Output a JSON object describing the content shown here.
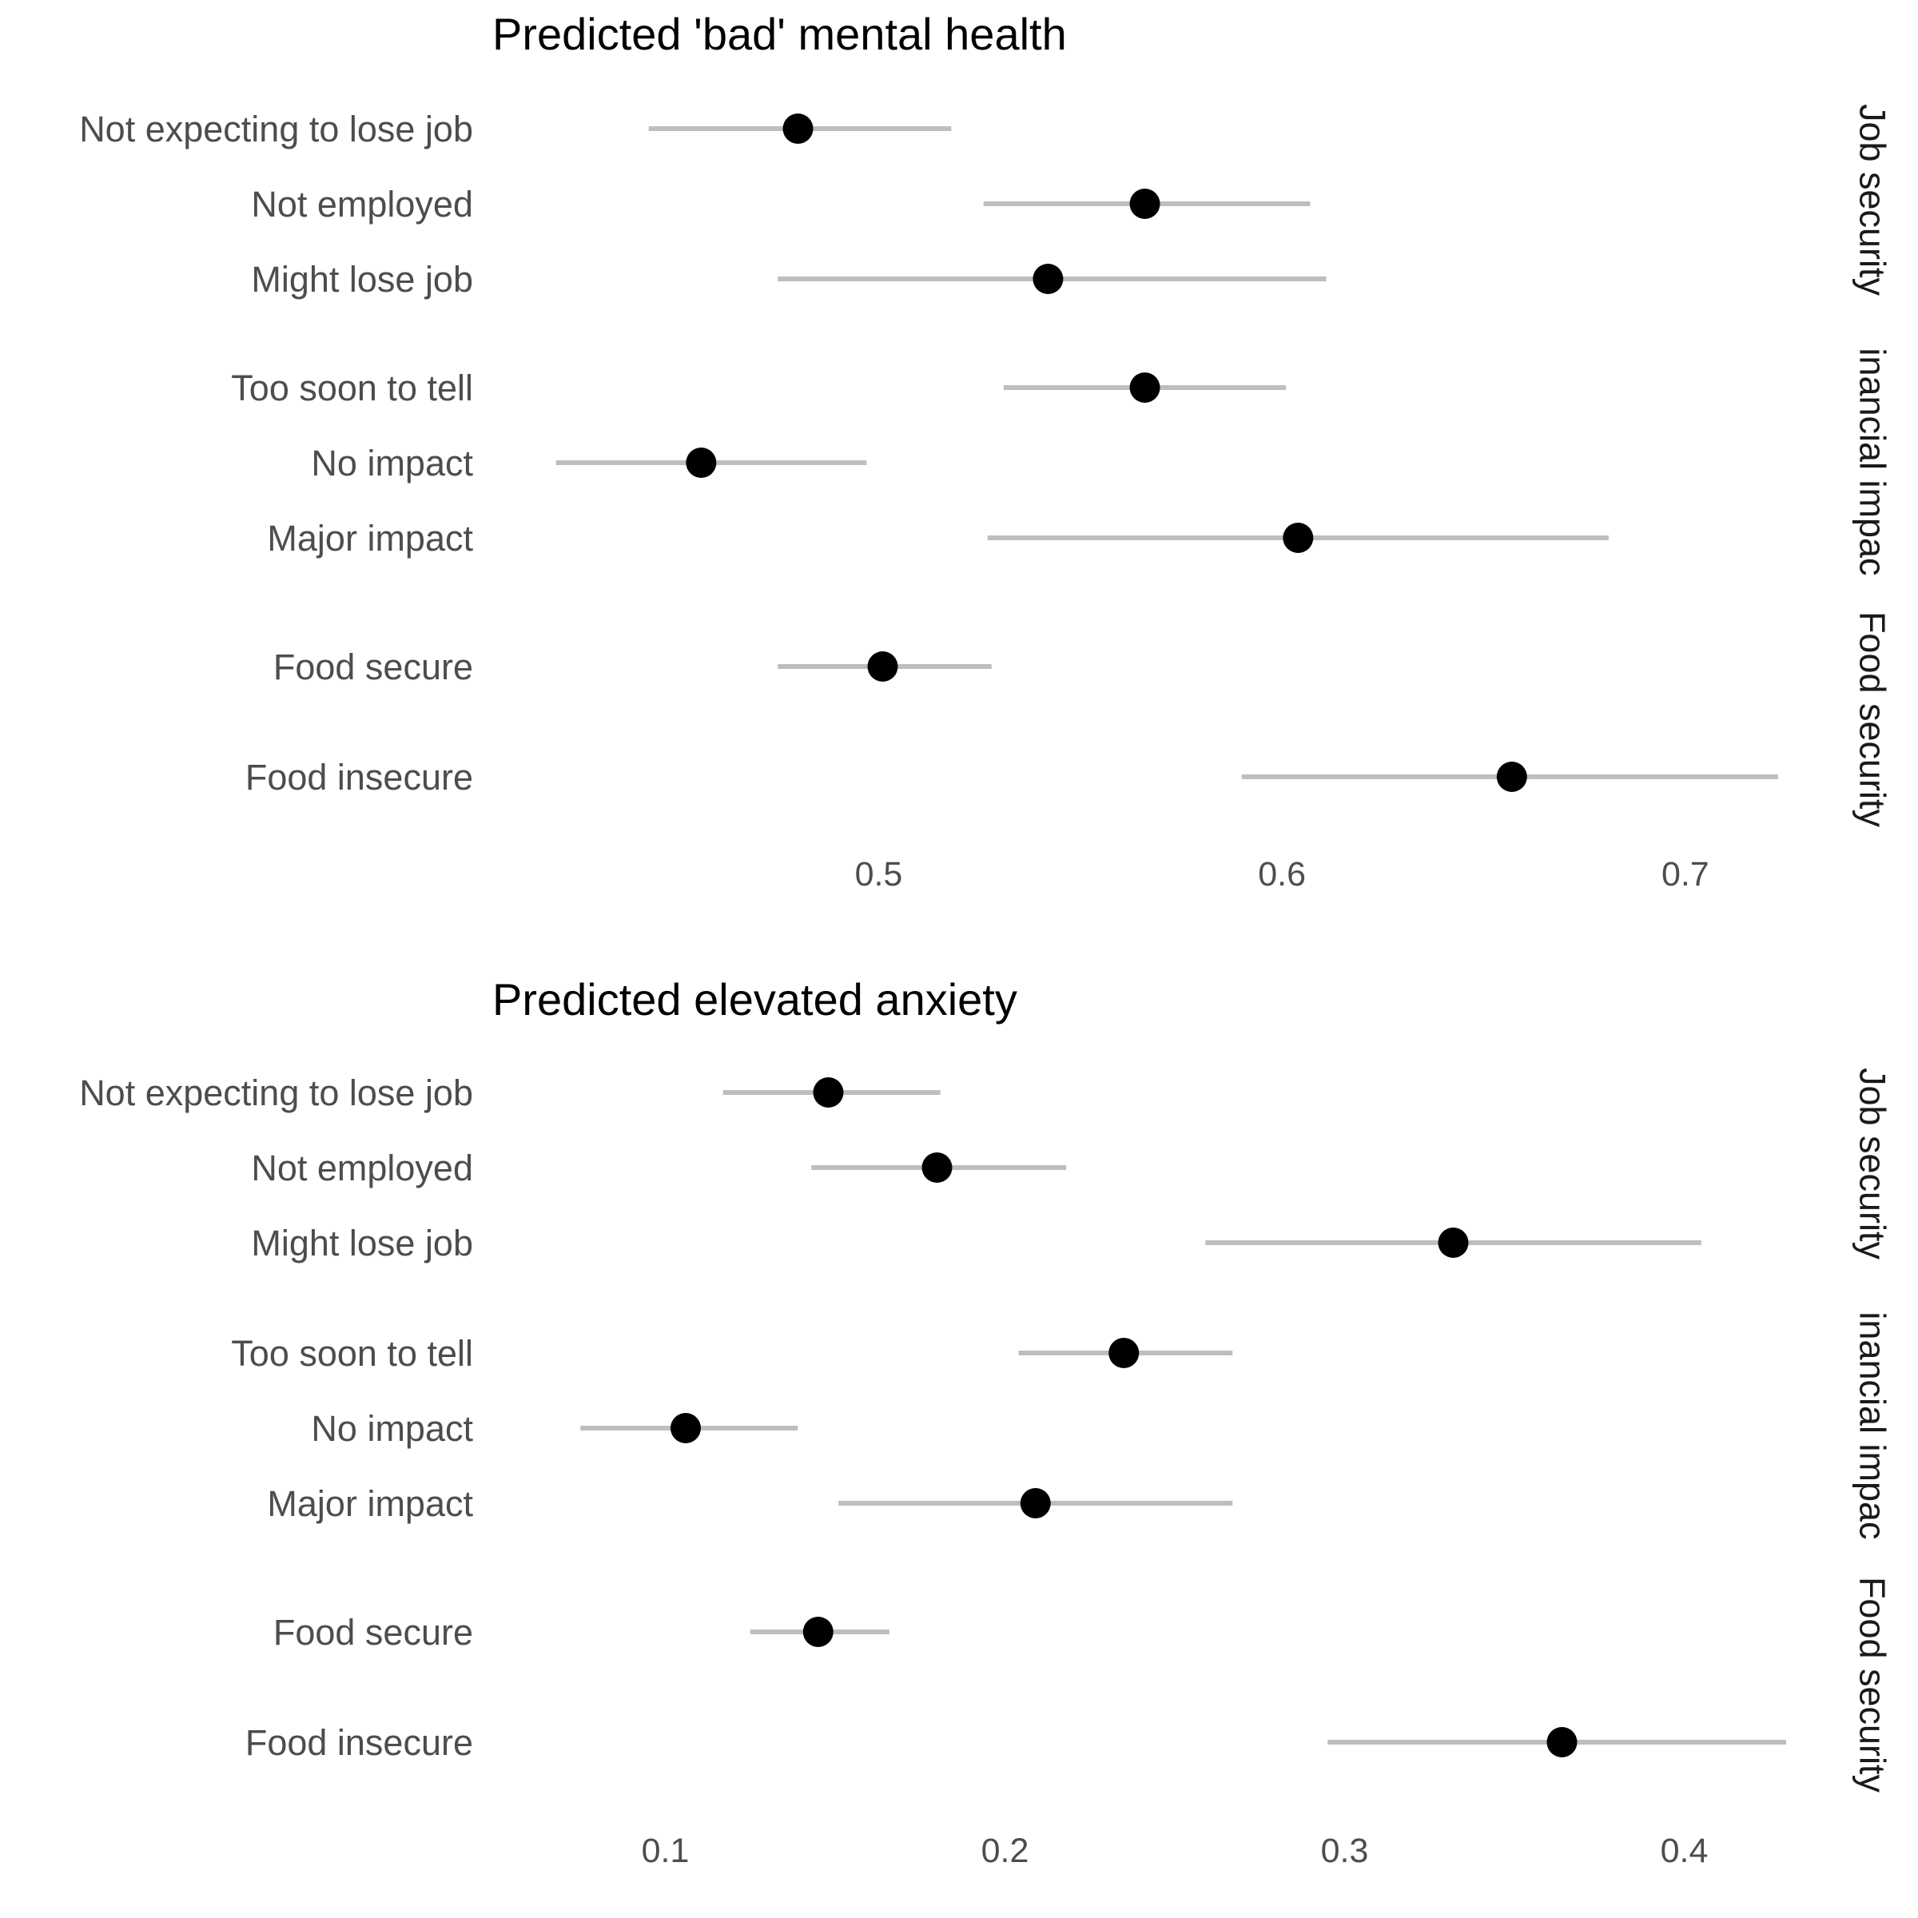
{
  "colors": {
    "ci_line": "#bebebe",
    "point": "#000000",
    "category_text": "#4d4d4d",
    "strip_text": "#1a1a1a",
    "title_text": "#000000",
    "background": "#ffffff"
  },
  "chart_data": [
    {
      "type": "dot-and-whisker",
      "title": "Predicted 'bad' mental health",
      "xlabel": "",
      "ylabel": "",
      "xlim": [
        0.405,
        0.725
      ],
      "xticks": [
        0.5,
        0.6,
        0.7
      ],
      "xtick_labels": [
        "0.5",
        "0.6",
        "0.7"
      ],
      "grid": false,
      "facets": [
        {
          "strip": "Job security",
          "rows": [
            {
              "label": "Not expecting to lose job",
              "estimate": 0.48,
              "lower": 0.443,
              "upper": 0.518
            },
            {
              "label": "Not employed",
              "estimate": 0.566,
              "lower": 0.526,
              "upper": 0.607
            },
            {
              "label": "Might lose job",
              "estimate": 0.542,
              "lower": 0.475,
              "upper": 0.611
            }
          ]
        },
        {
          "strip": "inancial impac",
          "rows": [
            {
              "label": "Too soon to tell",
              "estimate": 0.566,
              "lower": 0.531,
              "upper": 0.601
            },
            {
              "label": "No impact",
              "estimate": 0.456,
              "lower": 0.42,
              "upper": 0.497
            },
            {
              "label": "Major impact",
              "estimate": 0.604,
              "lower": 0.527,
              "upper": 0.681
            }
          ]
        },
        {
          "strip": "Food security",
          "rows": [
            {
              "label": "Food secure",
              "estimate": 0.501,
              "lower": 0.475,
              "upper": 0.528
            },
            {
              "label": "Food insecure",
              "estimate": 0.657,
              "lower": 0.59,
              "upper": 0.723
            }
          ]
        }
      ]
    },
    {
      "type": "dot-and-whisker",
      "title": "Predicted elevated anxiety",
      "xlabel": "",
      "ylabel": "",
      "xlim": [
        0.05,
        0.43
      ],
      "xticks": [
        0.1,
        0.2,
        0.3,
        0.4
      ],
      "xtick_labels": [
        "0.1",
        "0.2",
        "0.3",
        "0.4"
      ],
      "grid": false,
      "facets": [
        {
          "strip": "Job security",
          "rows": [
            {
              "label": "Not expecting to lose job",
              "estimate": 0.148,
              "lower": 0.117,
              "upper": 0.181
            },
            {
              "label": "Not employed",
              "estimate": 0.18,
              "lower": 0.143,
              "upper": 0.218
            },
            {
              "label": "Might lose job",
              "estimate": 0.332,
              "lower": 0.259,
              "upper": 0.405
            }
          ]
        },
        {
          "strip": "inancial impac",
          "rows": [
            {
              "label": "Too soon to tell",
              "estimate": 0.235,
              "lower": 0.204,
              "upper": 0.267
            },
            {
              "label": "No impact",
              "estimate": 0.106,
              "lower": 0.075,
              "upper": 0.139
            },
            {
              "label": "Major impact",
              "estimate": 0.209,
              "lower": 0.151,
              "upper": 0.267
            }
          ]
        },
        {
          "strip": "Food security",
          "rows": [
            {
              "label": "Food secure",
              "estimate": 0.145,
              "lower": 0.125,
              "upper": 0.166
            },
            {
              "label": "Food insecure",
              "estimate": 0.364,
              "lower": 0.295,
              "upper": 0.43
            }
          ]
        }
      ]
    }
  ]
}
